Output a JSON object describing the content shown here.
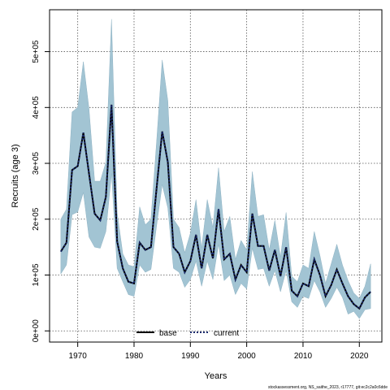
{
  "chart_data": {
    "type": "line",
    "xlabel": "Years",
    "ylabel": "Recruits (age 3)",
    "xlim": [
      1965,
      2024
    ],
    "ylim": [
      -20000,
      575000
    ],
    "x_ticks": [
      1970,
      1980,
      1990,
      2000,
      2010,
      2020
    ],
    "y_ticks": [
      0,
      100000,
      200000,
      300000,
      400000,
      500000
    ],
    "y_tick_labels": [
      "0e+00",
      "1e+05",
      "2e+05",
      "3e+05",
      "4e+05",
      "5e+05"
    ],
    "grid": true,
    "legend_position": "bottom-center",
    "footnote": "stockassessment.org, NS_saithe_2023, r17777, git:ec2c2a0c6dde",
    "band_color": "#a2c4d3",
    "band_border_color": "#8fb3c4",
    "x": [
      1967,
      1968,
      1969,
      1970,
      1971,
      1972,
      1973,
      1974,
      1975,
      1976,
      1977,
      1978,
      1979,
      1980,
      1981,
      1982,
      1983,
      1984,
      1985,
      1986,
      1987,
      1988,
      1989,
      1990,
      1991,
      1992,
      1993,
      1994,
      1995,
      1996,
      1997,
      1998,
      1999,
      2000,
      2001,
      2002,
      2003,
      2004,
      2005,
      2006,
      2007,
      2008,
      2009,
      2010,
      2011,
      2012,
      2013,
      2014,
      2015,
      2016,
      2017,
      2018,
      2019,
      2020,
      2021,
      2022
    ],
    "series": [
      {
        "name": "base",
        "color": "#000000",
        "style": "solid",
        "values": [
          142000,
          158000,
          288000,
          295000,
          355000,
          282000,
          210000,
          198000,
          240000,
          405000,
          160000,
          112000,
          88000,
          85000,
          158000,
          145000,
          150000,
          255000,
          357000,
          302000,
          150000,
          138000,
          105000,
          125000,
          172000,
          112000,
          172000,
          130000,
          218000,
          128000,
          138000,
          92000,
          118000,
          105000,
          210000,
          152000,
          152000,
          108000,
          145000,
          98000,
          150000,
          72000,
          62000,
          85000,
          80000,
          128000,
          100000,
          62000,
          82000,
          110000,
          85000,
          62000,
          48000,
          40000,
          60000,
          70000
        ]
      },
      {
        "name": "current",
        "color": "#1a2a6c",
        "style": "dotted",
        "values": [
          142000,
          158000,
          288000,
          295000,
          355000,
          282000,
          210000,
          198000,
          240000,
          405000,
          160000,
          112000,
          88000,
          85000,
          158000,
          145000,
          150000,
          255000,
          357000,
          302000,
          150000,
          138000,
          105000,
          125000,
          172000,
          112000,
          172000,
          130000,
          218000,
          128000,
          138000,
          92000,
          118000,
          105000,
          210000,
          152000,
          152000,
          108000,
          145000,
          98000,
          150000,
          72000,
          62000,
          85000,
          80000,
          128000,
          100000,
          62000,
          82000,
          110000,
          85000,
          62000,
          48000,
          40000,
          60000,
          70000
        ]
      }
    ],
    "ci_lower": [
      102000,
      118000,
      208000,
      213000,
      248000,
      168000,
      150000,
      148000,
      178000,
      282000,
      112000,
      88000,
      65000,
      62000,
      118000,
      105000,
      110000,
      188000,
      262000,
      220000,
      112000,
      105000,
      78000,
      92000,
      125000,
      80000,
      125000,
      92000,
      155000,
      90000,
      100000,
      65000,
      85000,
      75000,
      148000,
      110000,
      112000,
      80000,
      108000,
      70000,
      108000,
      52000,
      42000,
      62000,
      58000,
      90000,
      70000,
      42000,
      58000,
      78000,
      60000,
      30000,
      35000,
      22000,
      38000,
      40000
    ],
    "ci_upper": [
      200000,
      218000,
      392000,
      400000,
      482000,
      398000,
      268000,
      268000,
      302000,
      558000,
      212000,
      138000,
      118000,
      115000,
      222000,
      190000,
      200000,
      338000,
      485000,
      412000,
      200000,
      185000,
      140000,
      175000,
      235000,
      148000,
      235000,
      185000,
      292000,
      178000,
      205000,
      128000,
      162000,
      145000,
      285000,
      205000,
      208000,
      145000,
      198000,
      132000,
      212000,
      98000,
      88000,
      118000,
      112000,
      178000,
      135000,
      85000,
      120000,
      155000,
      118000,
      90000,
      68000,
      58000,
      80000,
      120000
    ]
  }
}
